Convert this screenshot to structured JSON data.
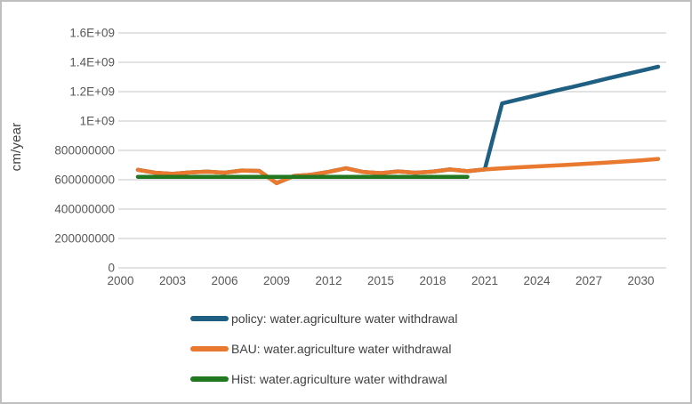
{
  "chart_data": {
    "type": "line",
    "title": "",
    "xlabel": "",
    "ylabel": "cm/year",
    "ylim": [
      0,
      1600000000
    ],
    "grid": "horizontal",
    "legend_position": "bottom",
    "x_ticks": [
      2000,
      2003,
      2006,
      2009,
      2012,
      2015,
      2018,
      2021,
      2024,
      2027,
      2030
    ],
    "y_ticks": [
      {
        "value": 0,
        "label": "0"
      },
      {
        "value": 200000000,
        "label": "200000000"
      },
      {
        "value": 400000000,
        "label": "400000000"
      },
      {
        "value": 600000000,
        "label": "600000000"
      },
      {
        "value": 800000000,
        "label": "800000000"
      },
      {
        "value": 1000000000,
        "label": "1E+09"
      },
      {
        "value": 1200000000,
        "label": "1.2E+09"
      },
      {
        "value": 1400000000,
        "label": "1.4E+09"
      },
      {
        "value": 1600000000,
        "label": "1.6E+09"
      }
    ],
    "series": [
      {
        "name": "policy: water.agriculture water withdrawal",
        "color": "#1F5F82",
        "years": [
          2001,
          2002,
          2003,
          2004,
          2005,
          2006,
          2007,
          2008,
          2009,
          2010,
          2011,
          2012,
          2013,
          2014,
          2015,
          2016,
          2017,
          2018,
          2019,
          2020,
          2021,
          2022,
          2023,
          2024,
          2025,
          2026,
          2027,
          2028,
          2029,
          2030,
          2031
        ],
        "values": [
          668000000,
          648000000,
          640000000,
          650000000,
          655000000,
          648000000,
          663000000,
          660000000,
          577000000,
          626000000,
          634000000,
          654000000,
          678000000,
          653000000,
          645000000,
          657000000,
          648000000,
          655000000,
          670000000,
          658000000,
          670000000,
          1120000000,
          1148000000,
          1176000000,
          1204000000,
          1231000000,
          1259000000,
          1287000000,
          1315000000,
          1342000000,
          1370000000
        ]
      },
      {
        "name": "BAU: water.agriculture water withdrawal",
        "color": "#E8792F",
        "years": [
          2001,
          2002,
          2003,
          2004,
          2005,
          2006,
          2007,
          2008,
          2009,
          2010,
          2011,
          2012,
          2013,
          2014,
          2015,
          2016,
          2017,
          2018,
          2019,
          2020,
          2021,
          2022,
          2023,
          2024,
          2025,
          2026,
          2027,
          2028,
          2029,
          2030,
          2031
        ],
        "values": [
          668000000,
          648000000,
          640000000,
          650000000,
          655000000,
          648000000,
          663000000,
          660000000,
          577000000,
          626000000,
          634000000,
          654000000,
          678000000,
          653000000,
          645000000,
          657000000,
          648000000,
          655000000,
          670000000,
          658000000,
          670000000,
          678000000,
          685000000,
          691000000,
          697000000,
          703000000,
          710000000,
          717000000,
          724000000,
          732000000,
          742000000
        ]
      },
      {
        "name": "Hist: water.agriculture water withdrawal",
        "color": "#217821",
        "years": [
          2001,
          2002,
          2003,
          2004,
          2005,
          2006,
          2007,
          2008,
          2009,
          2010,
          2011,
          2012,
          2013,
          2014,
          2015,
          2016,
          2017,
          2018,
          2019,
          2020
        ],
        "values": [
          620000000,
          620000000,
          620000000,
          620000000,
          620000000,
          620000000,
          620000000,
          620000000,
          620000000,
          620000000,
          620000000,
          620000000,
          620000000,
          620000000,
          620000000,
          620000000,
          620000000,
          620000000,
          620000000,
          620000000
        ]
      }
    ],
    "colors": {
      "gridline": "#D9D9D9",
      "tick_text": "#595959",
      "axis_title_text": "#404040",
      "legend_text": "#3F3F3F",
      "border": "#BFBFBF",
      "background": "#FFFFFF"
    }
  }
}
